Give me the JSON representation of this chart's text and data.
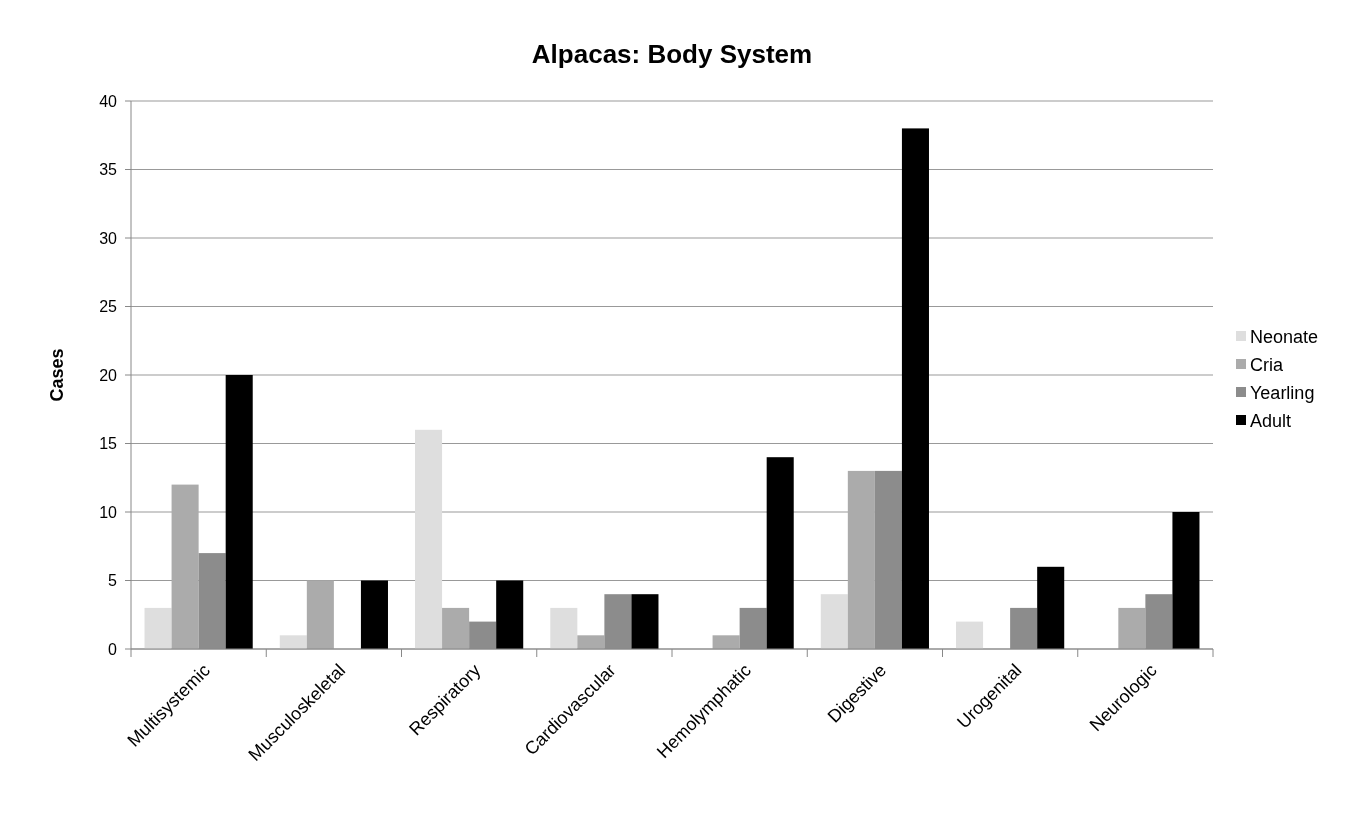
{
  "chart_data": {
    "type": "bar",
    "title": "Alpacas: Body System",
    "ylabel": "Cases",
    "categories": [
      "Multisystemic",
      "Musculoskeletal",
      "Respiratory",
      "Cardiovascular",
      "Hemolymphatic",
      "Digestive",
      "Urogenital",
      "Neurologic"
    ],
    "series": [
      {
        "name": "Neonate",
        "color": "#dedede",
        "values": [
          3,
          1,
          16,
          3,
          0,
          4,
          2,
          0
        ]
      },
      {
        "name": "Cria",
        "color": "#ababab",
        "values": [
          12,
          5,
          3,
          1,
          1,
          13,
          0,
          3
        ]
      },
      {
        "name": "Yearling",
        "color": "#8c8c8c",
        "values": [
          7,
          0,
          2,
          4,
          3,
          13,
          3,
          4
        ]
      },
      {
        "name": "Adult",
        "color": "#000000",
        "values": [
          20,
          5,
          5,
          4,
          14,
          38,
          6,
          10
        ]
      }
    ],
    "ylim": [
      0,
      40
    ],
    "yticks": [
      0,
      5,
      10,
      15,
      20,
      25,
      30,
      35,
      40
    ],
    "grid": "y",
    "legend": "right"
  }
}
